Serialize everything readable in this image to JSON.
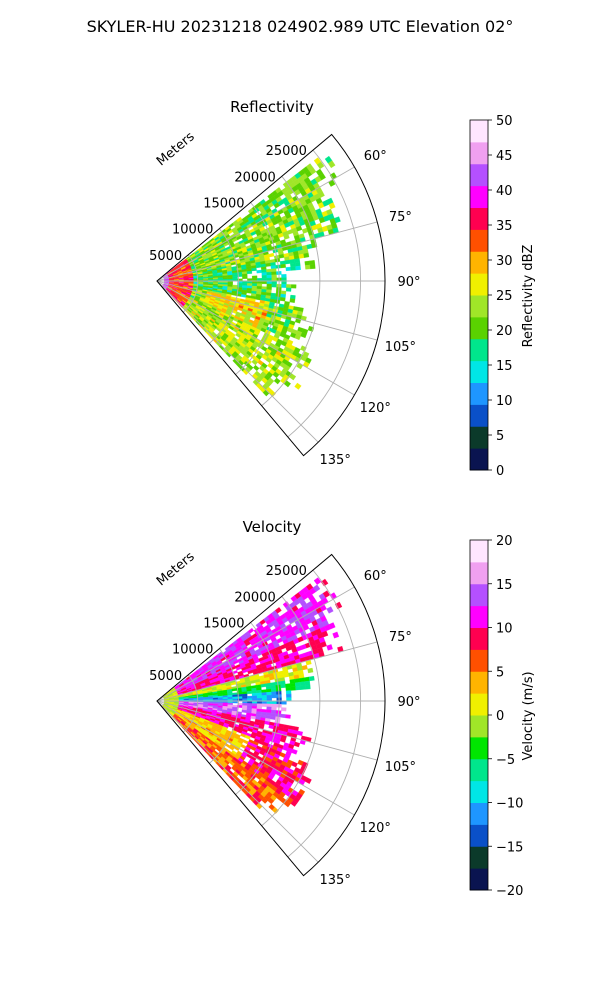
{
  "suptitle": "SKYLER-HU  20231218  024902.989 UTC Elevation 02°",
  "chart_data": [
    {
      "type": "heatmap",
      "subtype": "polar-sector",
      "title": "Reflectivity",
      "range_axis_label": "Meters",
      "range_ticks": [
        5000,
        10000,
        15000,
        20000,
        25000
      ],
      "range_tick_labels": [
        "5000",
        "10000",
        "15000",
        "20000",
        "25000"
      ],
      "range_max": 28000,
      "azimuth_range": [
        50,
        140
      ],
      "azimuth_ticks": [
        60,
        75,
        90,
        105,
        120,
        135
      ],
      "azimuth_tick_labels": [
        "60°",
        "75°",
        "90°",
        "105°",
        "120°",
        "135°"
      ],
      "grid": true,
      "colorbar": {
        "label": "Reflectivity dBZ",
        "vmin": 0,
        "vmax": 50,
        "ticks": [
          0,
          5,
          10,
          15,
          20,
          25,
          30,
          35,
          40,
          45,
          50
        ],
        "tick_labels": [
          "0",
          "5",
          "10",
          "15",
          "20",
          "25",
          "30",
          "35",
          "40",
          "45",
          "50"
        ],
        "colormap": [
          "#0a1450",
          "#0b3a2a",
          "#0a50c8",
          "#1e96ff",
          "#00e6e6",
          "#00e68c",
          "#5ad200",
          "#a0e628",
          "#f0f000",
          "#ffb400",
          "#ff5000",
          "#ff0050",
          "#ff00ff",
          "#b450ff",
          "#f0a0f0",
          "#ffe6ff"
        ]
      },
      "field_description_values": [
        {
          "az": 60,
          "r": 22000,
          "dbz": 22
        },
        {
          "az": 75,
          "r": 15000,
          "dbz": 22
        },
        {
          "az": 90,
          "r": 3000,
          "dbz": 30
        },
        {
          "az": 90,
          "r": 1000,
          "dbz": 40
        },
        {
          "az": 90,
          "r": 10000,
          "dbz": 18
        },
        {
          "az": 105,
          "r": 12000,
          "dbz": 26
        },
        {
          "az": 120,
          "r": 20000,
          "dbz": 24
        },
        {
          "az": 130,
          "r": 18000,
          "dbz": 22
        }
      ]
    },
    {
      "type": "heatmap",
      "subtype": "polar-sector",
      "title": "Velocity",
      "range_axis_label": "Meters",
      "range_ticks": [
        5000,
        10000,
        15000,
        20000,
        25000
      ],
      "range_tick_labels": [
        "5000",
        "10000",
        "15000",
        "20000",
        "25000"
      ],
      "range_max": 28000,
      "azimuth_range": [
        50,
        140
      ],
      "azimuth_ticks": [
        60,
        75,
        90,
        105,
        120,
        135
      ],
      "azimuth_tick_labels": [
        "60°",
        "75°",
        "90°",
        "105°",
        "120°",
        "135°"
      ],
      "grid": true,
      "colorbar": {
        "label": "Velocity (m/s)",
        "vmin": -20,
        "vmax": 20,
        "ticks": [
          -20,
          -15,
          -10,
          -5,
          0,
          5,
          10,
          15,
          20
        ],
        "tick_labels": [
          "−20",
          "−15",
          "−10",
          "−5",
          "0",
          "5",
          "10",
          "15",
          "20"
        ],
        "colormap": [
          "#0a1450",
          "#0b3a2a",
          "#0a50c8",
          "#1e96ff",
          "#00e6e6",
          "#00e68c",
          "#00e600",
          "#a0e628",
          "#f0f000",
          "#ffb400",
          "#ff5000",
          "#ff0050",
          "#ff00ff",
          "#b450ff",
          "#f0a0f0",
          "#ffe6ff"
        ]
      },
      "field_description_values": [
        {
          "az": 60,
          "r": 22000,
          "v": 12
        },
        {
          "az": 70,
          "r": 12000,
          "v": 10
        },
        {
          "az": 80,
          "r": 12000,
          "v": -2
        },
        {
          "az": 88,
          "r": 10000,
          "v": -10
        },
        {
          "az": 95,
          "r": 14000,
          "v": 14
        },
        {
          "az": 105,
          "r": 16000,
          "v": 10
        },
        {
          "az": 120,
          "r": 14000,
          "v": 2
        },
        {
          "az": 130,
          "r": 18000,
          "v": 8
        }
      ]
    }
  ]
}
